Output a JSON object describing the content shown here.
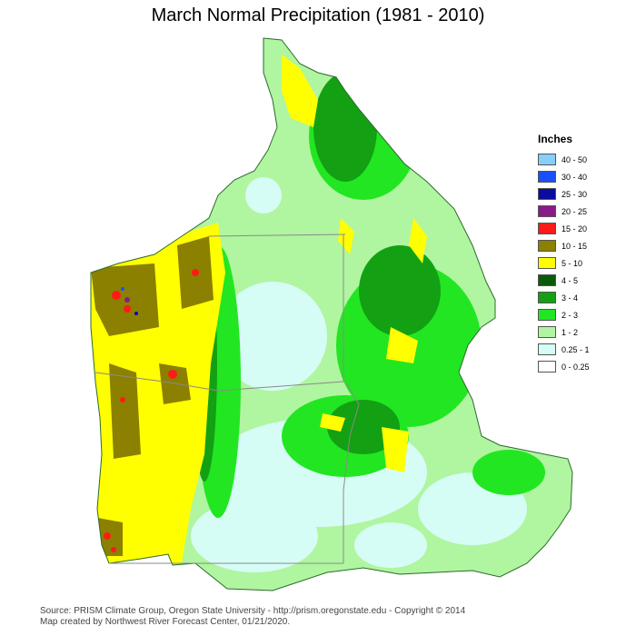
{
  "title": "March Normal Precipitation (1981 - 2010)",
  "legend": {
    "title": "Inches",
    "items": [
      {
        "label": "40 - 50",
        "color": "#87cefa"
      },
      {
        "label": "30 - 40",
        "color": "#1a4fff"
      },
      {
        "label": "25 - 30",
        "color": "#0b0b9e"
      },
      {
        "label": "20 - 25",
        "color": "#8a1a8a"
      },
      {
        "label": "15 - 20",
        "color": "#ff1a1a"
      },
      {
        "label": "10 - 15",
        "color": "#8c8000"
      },
      {
        "label": "5 - 10",
        "color": "#ffff00"
      },
      {
        "label": "4 - 5",
        "color": "#0b5a0b"
      },
      {
        "label": "3 - 4",
        "color": "#13a013"
      },
      {
        "label": "2 - 3",
        "color": "#22e622"
      },
      {
        "label": "1 - 2",
        "color": "#b0f5a0"
      },
      {
        "label": "0.25 - 1",
        "color": "#d6fdf5"
      },
      {
        "label": "0 - 0.25",
        "color": "#ffffff"
      }
    ]
  },
  "credits": {
    "line1": "Source: PRISM Climate Group, Oregon State University - http://prism.oregonstate.edu - Copyright © 2014",
    "line2": "Map created by Northwest River Forecast Center, 01/21/2020."
  }
}
